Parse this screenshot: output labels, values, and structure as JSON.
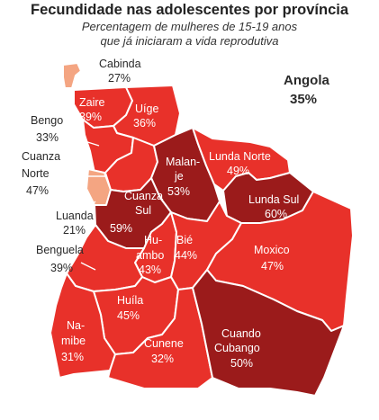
{
  "title": "Fecundidade nas adolescentes por província",
  "subtitle_line1": "Percentagem de mulheres de 15-19 anos",
  "subtitle_line2": "que já iniciaram a vida reprodutiva",
  "national": {
    "name": "Angola",
    "value": "35%"
  },
  "colors": {
    "low": "#f4a582",
    "mid": "#e8312a",
    "high": "#9b1b1b",
    "border": "#ffffff"
  },
  "provinces": [
    {
      "id": "cabinda",
      "name": "Cabinda",
      "value": "27%"
    },
    {
      "id": "zaire",
      "name": "Zaire",
      "value": "39%"
    },
    {
      "id": "uige",
      "name": "Uíge",
      "value": "36%"
    },
    {
      "id": "bengo",
      "name": "Bengo",
      "value": "33%"
    },
    {
      "id": "cuanza-norte",
      "name_line1": "Cuanza",
      "name_line2": "Norte",
      "value": "47%"
    },
    {
      "id": "luanda",
      "name": "Luanda",
      "value": "21%"
    },
    {
      "id": "malanje",
      "name_line1": "Malan-",
      "name_line2": "je",
      "value": "53%"
    },
    {
      "id": "lunda-norte",
      "name": "Lunda Norte",
      "value": "49%"
    },
    {
      "id": "lunda-sul",
      "name": "Lunda Sul",
      "value": "60%"
    },
    {
      "id": "cuanza-sul",
      "name_line1": "Cuanza",
      "name_line2": "Sul",
      "value": "59%"
    },
    {
      "id": "benguela",
      "name": "Benguela",
      "value": "39%"
    },
    {
      "id": "huambo",
      "name_line1": "Hu-",
      "name_line2": "ambo",
      "value": "43%"
    },
    {
      "id": "bie",
      "name": "Bié",
      "value": "44%"
    },
    {
      "id": "moxico",
      "name": "Moxico",
      "value": "47%"
    },
    {
      "id": "huila",
      "name": "Huíla",
      "value": "45%"
    },
    {
      "id": "namibe",
      "name_line1": "Na-",
      "name_line2": "mibe",
      "value": "31%"
    },
    {
      "id": "cunene",
      "name": "Cunene",
      "value": "32%"
    },
    {
      "id": "cuando-cubango",
      "name_line1": "Cuando",
      "name_line2": "Cubango",
      "value": "50%"
    }
  ]
}
